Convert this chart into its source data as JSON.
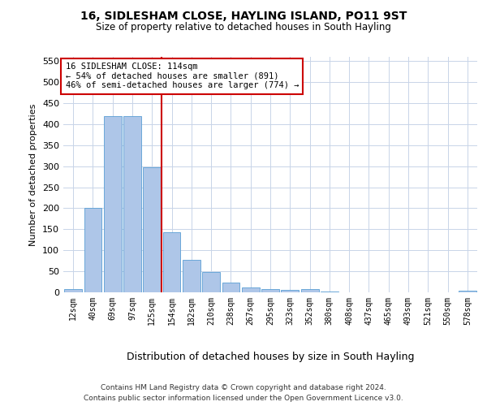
{
  "title": "16, SIDLESHAM CLOSE, HAYLING ISLAND, PO11 9ST",
  "subtitle": "Size of property relative to detached houses in South Hayling",
  "xlabel": "Distribution of detached houses by size in South Hayling",
  "ylabel": "Number of detached properties",
  "footer_line1": "Contains HM Land Registry data © Crown copyright and database right 2024.",
  "footer_line2": "Contains public sector information licensed under the Open Government Licence v3.0.",
  "bar_labels": [
    "12sqm",
    "40sqm",
    "69sqm",
    "97sqm",
    "125sqm",
    "154sqm",
    "182sqm",
    "210sqm",
    "238sqm",
    "267sqm",
    "295sqm",
    "323sqm",
    "352sqm",
    "380sqm",
    "408sqm",
    "437sqm",
    "465sqm",
    "493sqm",
    "521sqm",
    "550sqm",
    "578sqm"
  ],
  "bar_values": [
    8,
    200,
    420,
    420,
    298,
    143,
    77,
    49,
    24,
    12,
    8,
    6,
    7,
    2,
    0,
    0,
    0,
    0,
    0,
    0,
    4
  ],
  "bar_color": "#aec6e8",
  "bar_edgecolor": "#5a9fd4",
  "vline_color": "#cc0000",
  "annotation_title": "16 SIDLESHAM CLOSE: 114sqm",
  "annotation_line2": "← 54% of detached houses are smaller (891)",
  "annotation_line3": "46% of semi-detached houses are larger (774) →",
  "annotation_box_edgecolor": "#cc0000",
  "ylim": [
    0,
    560
  ],
  "yticks": [
    0,
    50,
    100,
    150,
    200,
    250,
    300,
    350,
    400,
    450,
    500,
    550
  ],
  "vline_position": 4.5,
  "title_fontsize": 10,
  "subtitle_fontsize": 9
}
